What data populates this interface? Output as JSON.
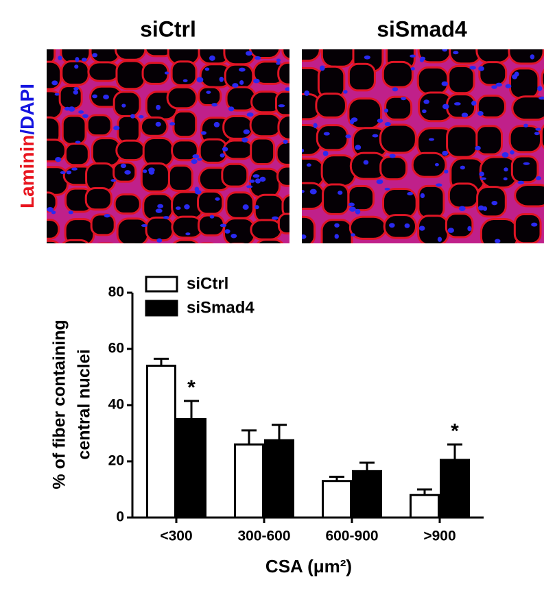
{
  "panels": {
    "titles": [
      "siCtrl",
      "siSmad4"
    ],
    "stain_label": [
      {
        "text": "Laminin",
        "color": "#e8141e"
      },
      {
        "text": "/DAPI",
        "color": "#1515e0"
      }
    ]
  },
  "chart_data": {
    "type": "bar",
    "categories": [
      "<300",
      "300-600",
      "600-900",
      ">900"
    ],
    "series": [
      {
        "name": "siCtrl",
        "color": "#ffffff",
        "values": [
          54,
          26,
          13,
          8
        ],
        "errors": [
          2.5,
          5,
          1.5,
          2
        ]
      },
      {
        "name": "siSmad4",
        "color": "#000000",
        "values": [
          35,
          27.5,
          16.5,
          20.5
        ],
        "errors": [
          6.5,
          5.5,
          3,
          5.5
        ],
        "markers": [
          "*",
          null,
          null,
          "*"
        ]
      }
    ],
    "y_label": [
      "% of fiber containing",
      "central nuclei"
    ],
    "x_label": "CSA (μm²)",
    "ylim": [
      0,
      80
    ],
    "yticks": [
      0,
      20,
      40,
      60,
      80
    ],
    "legend": "top-left"
  }
}
